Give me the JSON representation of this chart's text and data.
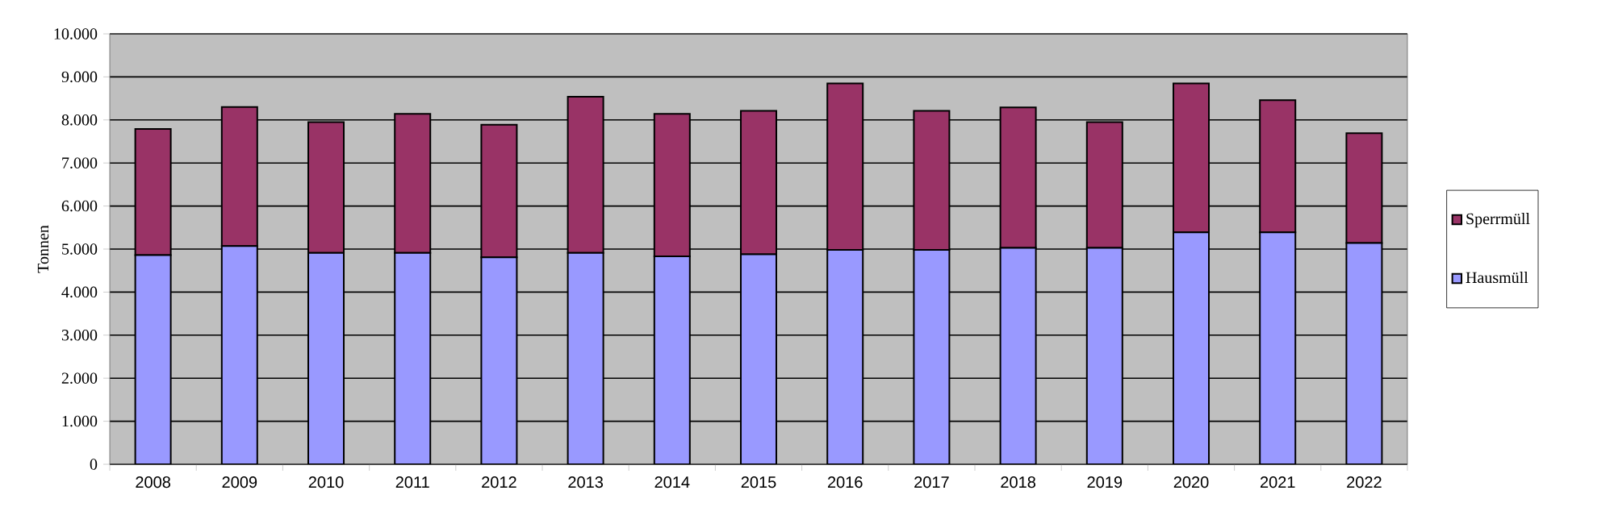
{
  "chart_data": {
    "type": "bar",
    "stacked": true,
    "ylabel": "Tonnen",
    "categories": [
      "2008",
      "2009",
      "2010",
      "2011",
      "2012",
      "2013",
      "2014",
      "2015",
      "2016",
      "2017",
      "2018",
      "2019",
      "2020",
      "2021",
      "2022"
    ],
    "series": [
      {
        "name": "Hausmüll",
        "color": "#9999ff",
        "values": [
          4860,
          5070,
          4910,
          4910,
          4810,
          4910,
          4830,
          4880,
          4980,
          4980,
          5030,
          5030,
          5390,
          5390,
          5140
        ]
      },
      {
        "name": "Sperrmüll",
        "color": "#993366",
        "values": [
          2930,
          3230,
          3040,
          3230,
          3080,
          3630,
          3310,
          3330,
          3870,
          3230,
          3260,
          2920,
          3460,
          3070,
          2550
        ]
      }
    ],
    "ylim": [
      0,
      10000
    ],
    "yticks": [
      0,
      {
        "value": 1000,
        "label": "1.000"
      },
      {
        "value": 2000,
        "label": "2.000"
      },
      {
        "value": 3000,
        "label": "3.000"
      },
      {
        "value": 4000,
        "label": "4.000"
      },
      {
        "value": 5000,
        "label": "5.000"
      },
      {
        "value": 6000,
        "label": "6.000"
      },
      {
        "value": 7000,
        "label": "7.000"
      },
      {
        "value": 8000,
        "label": "8.000"
      },
      {
        "value": 9000,
        "label": "9.000"
      },
      {
        "value": 10000,
        "label": "10.000"
      }
    ],
    "grid": "y",
    "legend": "right"
  }
}
